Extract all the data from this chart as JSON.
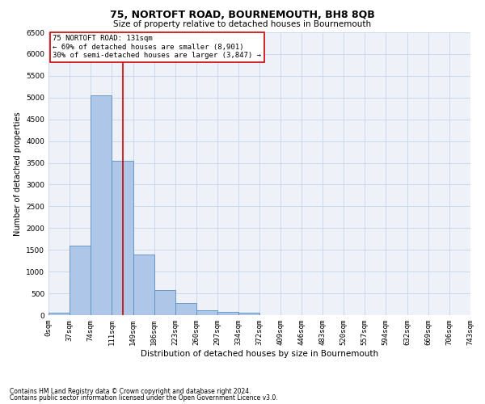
{
  "title": "75, NORTOFT ROAD, BOURNEMOUTH, BH8 8QB",
  "subtitle": "Size of property relative to detached houses in Bournemouth",
  "xlabel": "Distribution of detached houses by size in Bournemouth",
  "ylabel": "Number of detached properties",
  "footnote1": "Contains HM Land Registry data © Crown copyright and database right 2024.",
  "footnote2": "Contains public sector information licensed under the Open Government Licence v3.0.",
  "annotation_title": "75 NORTOFT ROAD: 131sqm",
  "annotation_line1": "← 69% of detached houses are smaller (8,901)",
  "annotation_line2": "30% of semi-detached houses are larger (3,847) →",
  "property_size": 131,
  "bin_edges": [
    0,
    37,
    74,
    111,
    149,
    186,
    223,
    260,
    297,
    334,
    372,
    409,
    446,
    483,
    520,
    557,
    594,
    632,
    669,
    706,
    743
  ],
  "bar_heights": [
    50,
    1600,
    5050,
    3550,
    1400,
    580,
    270,
    110,
    80,
    50,
    0,
    0,
    0,
    0,
    0,
    0,
    0,
    0,
    0,
    0
  ],
  "bar_color": "#aec6e8",
  "bar_edge_color": "#5a8fc0",
  "vline_color": "#cc0000",
  "vline_x": 131,
  "ylim": [
    0,
    6500
  ],
  "yticks": [
    0,
    500,
    1000,
    1500,
    2000,
    2500,
    3000,
    3500,
    4000,
    4500,
    5000,
    5500,
    6000,
    6500
  ],
  "grid_color": "#c8d4e8",
  "background_color": "#eef2f8",
  "plot_bg_color": "#eef2f8",
  "annotation_box_color": "#ffffff",
  "annotation_box_edge": "#cc0000",
  "title_fontsize": 9,
  "subtitle_fontsize": 7.5,
  "xlabel_fontsize": 7.5,
  "ylabel_fontsize": 7,
  "tick_fontsize": 6.5,
  "annotation_fontsize": 6.5,
  "footnote_fontsize": 5.5
}
